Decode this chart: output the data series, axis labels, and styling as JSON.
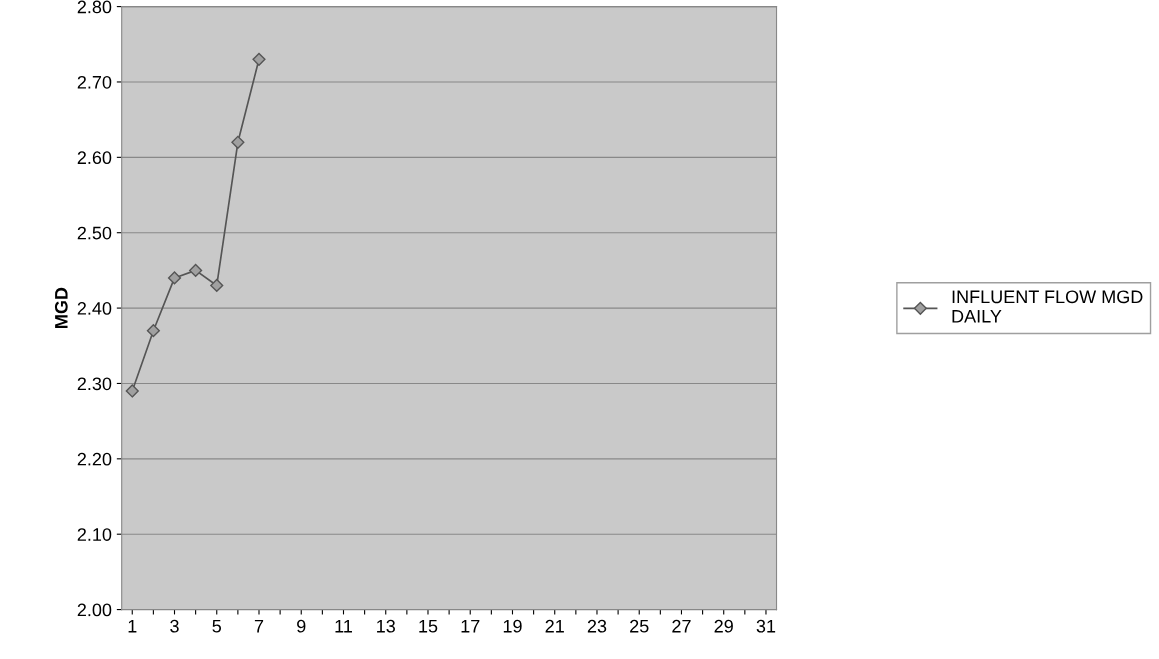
{
  "chart_data": {
    "type": "line",
    "ylabel": "MGD",
    "categories": [
      "1",
      null,
      "3",
      null,
      "5",
      null,
      "7",
      null,
      "9",
      null,
      "11",
      null,
      "13",
      null,
      "15",
      null,
      "17",
      null,
      "19",
      null,
      "21",
      null,
      "23",
      null,
      "25",
      null,
      "27",
      null,
      "29",
      null,
      "31"
    ],
    "series": [
      {
        "name": "INFLUENT FLOW MGD\nDAILY",
        "color": "#555555",
        "values": [
          2.29,
          2.37,
          2.44,
          2.45,
          2.43,
          2.62,
          2.73,
          null,
          null,
          null,
          null,
          null,
          null,
          null,
          null,
          null,
          null,
          null,
          null,
          null,
          null,
          null,
          null,
          null,
          null,
          null,
          null,
          null,
          null,
          null,
          null
        ]
      }
    ],
    "ylim": [
      2.0,
      2.8
    ],
    "yticks": [
      {
        "value": 2.0,
        "label": "2.00"
      },
      {
        "value": 2.1,
        "label": "2.10"
      },
      {
        "value": 2.2,
        "label": "2.20"
      },
      {
        "value": 2.3,
        "label": "2.30"
      },
      {
        "value": 2.4,
        "label": "2.40"
      },
      {
        "value": 2.5,
        "label": "2.50"
      },
      {
        "value": 2.6,
        "label": "2.60"
      },
      {
        "value": 2.7,
        "label": "2.70"
      },
      {
        "value": 2.8,
        "label": "2.80"
      }
    ],
    "grid": "y",
    "legend": "right",
    "marker": "diamond",
    "line_style": "solid"
  }
}
